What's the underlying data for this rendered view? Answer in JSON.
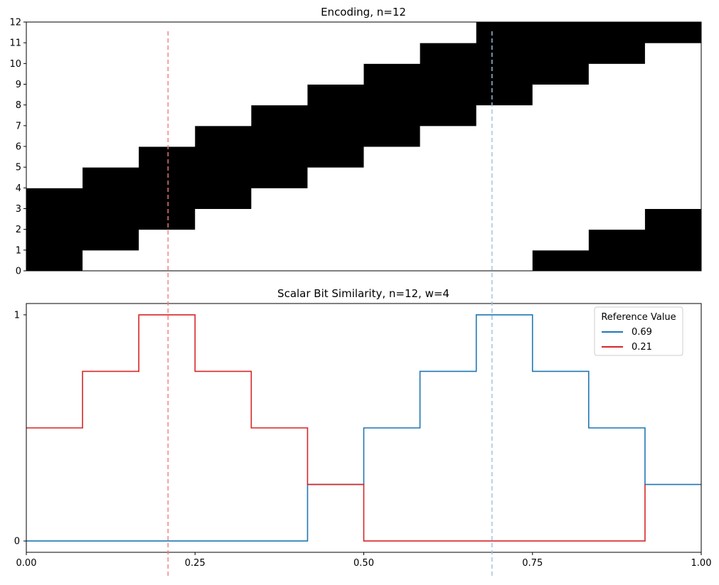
{
  "chart_data": [
    {
      "type": "heatmap",
      "title": "Encoding, n=12",
      "xlim": [
        0,
        1
      ],
      "ylim": [
        0,
        12
      ],
      "y_ticks": [
        "0",
        "1",
        "2",
        "3",
        "4",
        "5",
        "6",
        "7",
        "8",
        "9",
        "10",
        "11",
        "12"
      ],
      "encoding": {
        "n": 12,
        "w": 4
      },
      "cmap": [
        "#ffffff",
        "#000000"
      ],
      "reference_lines": [
        {
          "x": 0.21,
          "color": "#f08080"
        },
        {
          "x": 0.69,
          "color": "#9ec3e0"
        }
      ]
    },
    {
      "type": "line",
      "title": "Scalar Bit Similarity, n=12, w=4",
      "xlim": [
        0,
        1
      ],
      "ylim": [
        -0.05,
        1.05
      ],
      "x_ticks": [
        "0.00",
        "0.25",
        "0.50",
        "0.75",
        "1.00"
      ],
      "y_ticks": [
        "0",
        "1"
      ],
      "legend": {
        "title": "Reference Value",
        "placement": "top-right"
      },
      "series": [
        {
          "name": "0.69",
          "color": "#1f77b4",
          "x": [
            0.0,
            0.4167,
            0.4167,
            0.5,
            0.5,
            0.5833,
            0.5833,
            0.6667,
            0.6667,
            0.75,
            0.75,
            0.8333,
            0.8333,
            0.9167,
            0.9167,
            1.0
          ],
          "y": [
            0.0,
            0.0,
            0.25,
            0.25,
            0.5,
            0.5,
            0.75,
            0.75,
            1.0,
            1.0,
            0.75,
            0.75,
            0.5,
            0.5,
            0.25,
            0.25
          ]
        },
        {
          "name": "0.21",
          "color": "#d62728",
          "x": [
            0.0,
            0.0833,
            0.0833,
            0.1667,
            0.1667,
            0.25,
            0.25,
            0.3333,
            0.3333,
            0.4167,
            0.4167,
            0.5,
            0.5,
            0.9167,
            0.9167
          ],
          "y": [
            0.5,
            0.5,
            0.75,
            0.75,
            1.0,
            1.0,
            0.75,
            0.75,
            0.5,
            0.5,
            0.25,
            0.25,
            0.0,
            0.0,
            0.25
          ]
        }
      ],
      "reference_lines": [
        {
          "x": 0.21,
          "color": "#f08080"
        },
        {
          "x": 0.69,
          "color": "#9ec3e0"
        }
      ]
    }
  ]
}
